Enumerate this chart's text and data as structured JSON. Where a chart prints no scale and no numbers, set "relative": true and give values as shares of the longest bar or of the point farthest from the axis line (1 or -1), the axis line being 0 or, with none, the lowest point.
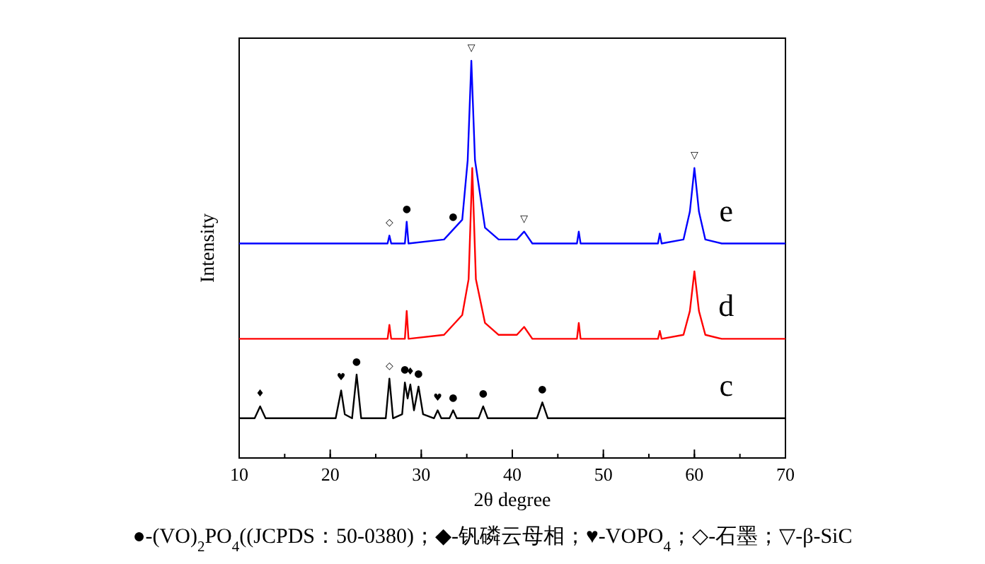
{
  "chart_data": {
    "type": "line",
    "relative": true,
    "xlabel": "2θ degree",
    "ylabel": "Intensity",
    "xlim": [
      10,
      70
    ],
    "xticks": [
      10,
      20,
      30,
      40,
      50,
      60,
      70
    ],
    "grid": false,
    "line_style": "solid",
    "series": [
      {
        "name": "c",
        "color": "#000000",
        "x": [
          10,
          11.7,
          12.3,
          12.9,
          20.6,
          21.2,
          21.6,
          22.4,
          22.9,
          23.4,
          26.1,
          26.5,
          26.9,
          27.9,
          28.2,
          28.5,
          28.8,
          29.2,
          29.7,
          30.2,
          31.4,
          31.8,
          32.2,
          33.1,
          33.5,
          33.9,
          36.3,
          36.8,
          37.3,
          42.7,
          43.3,
          43.9,
          70
        ],
        "values": [
          0.1,
          0.1,
          0.13,
          0.1,
          0.1,
          0.17,
          0.11,
          0.1,
          0.21,
          0.1,
          0.1,
          0.2,
          0.1,
          0.11,
          0.19,
          0.15,
          0.185,
          0.12,
          0.18,
          0.11,
          0.1,
          0.12,
          0.1,
          0.1,
          0.12,
          0.1,
          0.1,
          0.13,
          0.1,
          0.1,
          0.14,
          0.1,
          0.1
        ]
      },
      {
        "name": "d",
        "color": "#ff0000",
        "x": [
          10,
          26.3,
          26.5,
          26.7,
          28.2,
          28.4,
          28.6,
          32.5,
          33.5,
          34.5,
          35.2,
          35.6,
          36.0,
          37,
          38.5,
          40.5,
          41.3,
          42.2,
          47.1,
          47.3,
          47.5,
          56,
          56.2,
          56.4,
          58.8,
          59.5,
          60,
          60.5,
          61.2,
          63,
          70
        ],
        "values": [
          0.3,
          0.3,
          0.335,
          0.3,
          0.3,
          0.37,
          0.3,
          0.31,
          0.335,
          0.36,
          0.45,
          0.73,
          0.45,
          0.34,
          0.31,
          0.31,
          0.33,
          0.3,
          0.3,
          0.34,
          0.3,
          0.3,
          0.32,
          0.3,
          0.31,
          0.37,
          0.47,
          0.37,
          0.31,
          0.3,
          0.3
        ]
      },
      {
        "name": "e",
        "color": "#0000ff",
        "x": [
          10,
          26.3,
          26.5,
          26.7,
          28.2,
          28.4,
          28.6,
          32.5,
          33.5,
          34.5,
          35.1,
          35.5,
          35.9,
          37,
          38.5,
          40.5,
          41.3,
          42.2,
          47.1,
          47.3,
          47.5,
          56,
          56.2,
          56.4,
          58.8,
          59.5,
          60,
          60.5,
          61.2,
          63,
          70
        ],
        "values": [
          0.54,
          0.54,
          0.56,
          0.54,
          0.54,
          0.595,
          0.54,
          0.55,
          0.575,
          0.6,
          0.75,
          1.0,
          0.75,
          0.58,
          0.55,
          0.55,
          0.57,
          0.54,
          0.54,
          0.57,
          0.54,
          0.54,
          0.565,
          0.54,
          0.55,
          0.62,
          0.73,
          0.62,
          0.55,
          0.54,
          0.54
        ]
      }
    ],
    "annotations": [
      {
        "text": "◇",
        "x": 26.5,
        "y": 0.56
      },
      {
        "text": "●",
        "x": 28.4,
        "y": 0.595
      },
      {
        "text": "●",
        "x": 33.5,
        "y": 0.575
      },
      {
        "text": "▽",
        "x": 35.5,
        "y": 1.0
      },
      {
        "text": "▽",
        "x": 41.3,
        "y": 0.57
      },
      {
        "text": "▽",
        "x": 60,
        "y": 0.73
      },
      {
        "text": "♦",
        "x": 12.3,
        "y": 0.13
      },
      {
        "text": "♥",
        "x": 21.2,
        "y": 0.17
      },
      {
        "text": "●",
        "x": 22.9,
        "y": 0.21
      },
      {
        "text": "◇",
        "x": 26.5,
        "y": 0.2
      },
      {
        "text": "●",
        "x": 28.2,
        "y": 0.19
      },
      {
        "text": "♦",
        "x": 28.8,
        "y": 0.185
      },
      {
        "text": "●",
        "x": 29.7,
        "y": 0.18
      },
      {
        "text": "♥",
        "x": 31.8,
        "y": 0.12
      },
      {
        "text": "●",
        "x": 33.5,
        "y": 0.12
      },
      {
        "text": "●",
        "x": 36.8,
        "y": 0.13
      },
      {
        "text": "●",
        "x": 43.3,
        "y": 0.14
      },
      "●-(VO)$_{2}$PO$_{4}$((JCPDS：50-0380)；◆-钒磷云母相；♥-VOPO$_{4}$；◇-石墨；▽-β-SiC"
    ]
  }
}
